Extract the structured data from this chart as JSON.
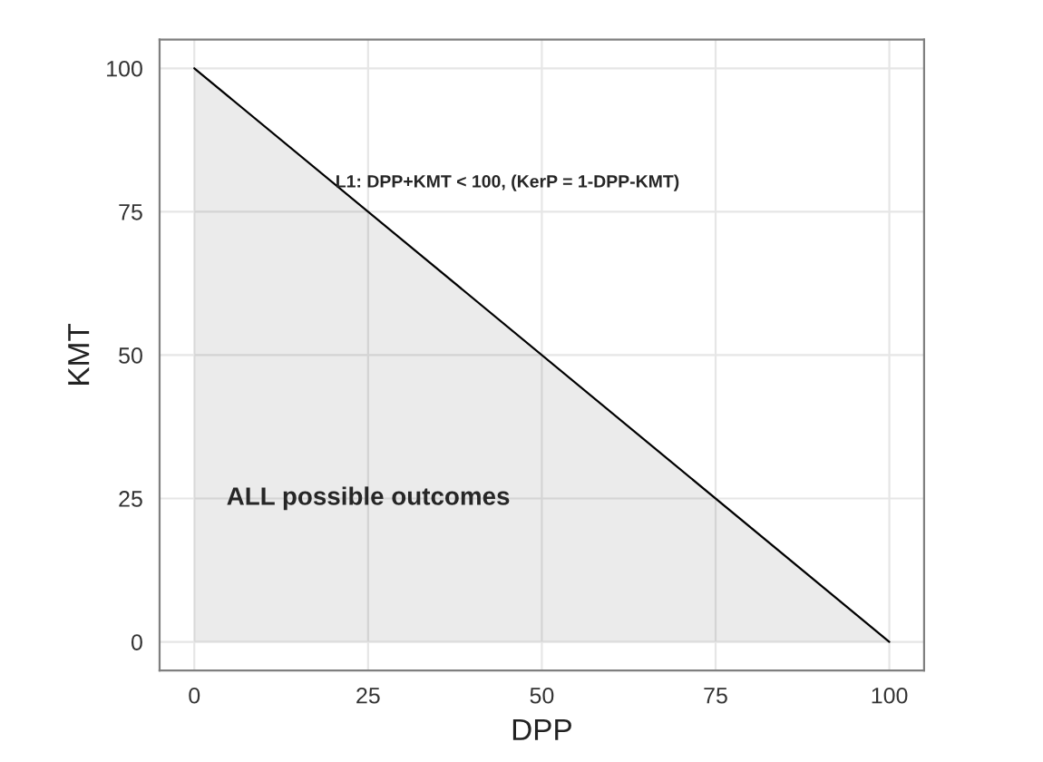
{
  "chart_data": {
    "type": "area",
    "xlabel": "DPP",
    "ylabel": "KMT",
    "x": [
      0,
      100
    ],
    "series": [
      {
        "color": "#000000",
        "values": [
          100,
          0
        ]
      }
    ],
    "xlim": [
      -5,
      105
    ],
    "ylim": [
      -5,
      105
    ],
    "xticks": [
      0,
      25,
      50,
      75,
      100
    ],
    "yticks": [
      0,
      25,
      50,
      75,
      100
    ],
    "grid": true,
    "annotations": [
      "L1: DPP+KMT < 100, (KerP = 1-DPP-KMT)",
      "ALL possible outcomes"
    ]
  }
}
